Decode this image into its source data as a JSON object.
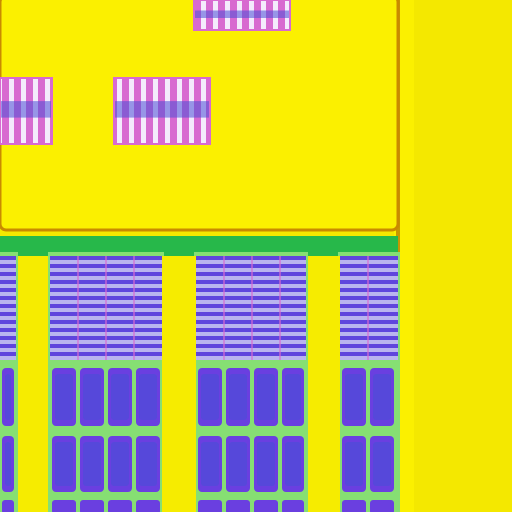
{
  "image": {
    "subject": "microscope-view",
    "palette": {
      "background": "#f4e800",
      "metal_pad": "#fbf000",
      "pad_edge": "#c98a00",
      "trace_dark": "#b07000",
      "green_layer": "#27b84a",
      "green_light": "#86df73",
      "cell_purple": "#6a3fe0",
      "cell_blue": "#4a4fd6",
      "cell_pink": "#d86ad0",
      "cell_white": "#f4eafc",
      "gap_yellow": "#f6ec00"
    }
  }
}
